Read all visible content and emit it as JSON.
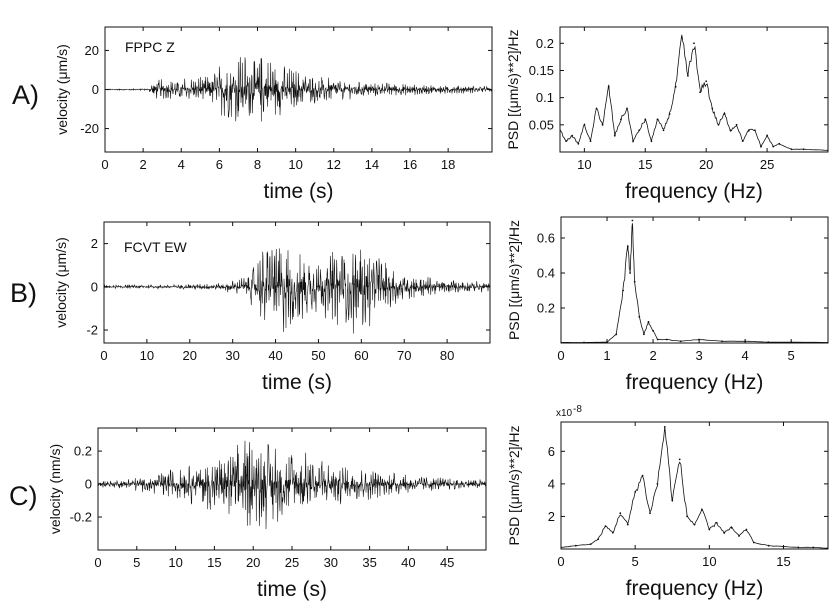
{
  "colors": {
    "ink": "#111111",
    "background": "#ffffff"
  },
  "chart_data": [
    {
      "type": "line",
      "panel": "A)",
      "label": "FPPC Z",
      "xlabel": "time (s)",
      "ylabel": "velocity (μm/s)",
      "xlim": [
        0,
        20.3
      ],
      "ylim": [
        -32,
        32
      ],
      "xticks": [
        0,
        2,
        4,
        6,
        8,
        10,
        12,
        14,
        16,
        18
      ],
      "yticks": [
        -20,
        0,
        20
      ],
      "envelope": {
        "x": [
          0,
          2.3,
          2.5,
          4,
          5.5,
          6.5,
          7.3,
          8,
          9,
          10.5,
          12,
          14,
          16,
          18,
          20.3
        ],
        "amp": [
          0.3,
          0.5,
          5,
          6,
          8,
          17,
          19,
          21,
          14,
          9,
          6,
          4,
          3,
          2.5,
          2
        ]
      },
      "grid": false
    },
    {
      "type": "line",
      "panel": "A)",
      "xlabel": "frequency (Hz)",
      "ylabel": "PSD [(μm/s)**2]/Hz",
      "xlim": [
        8,
        30
      ],
      "ylim": [
        0,
        0.23
      ],
      "xticks": [
        10,
        15,
        20,
        25
      ],
      "yticks": [
        0.05,
        0.1,
        0.15,
        0.2
      ],
      "x": [
        8,
        8.5,
        9,
        9.5,
        10,
        10.5,
        11,
        11.5,
        12,
        12.5,
        13,
        13.5,
        14,
        14.5,
        15,
        15.5,
        16,
        16.5,
        17,
        17.5,
        18,
        18.5,
        19,
        19.5,
        20,
        20.5,
        21,
        21.5,
        22,
        22.5,
        23,
        23.5,
        24,
        24.5,
        25,
        25.5,
        26,
        27,
        28,
        30
      ],
      "y": [
        0.04,
        0.02,
        0.03,
        0.015,
        0.05,
        0.02,
        0.08,
        0.05,
        0.12,
        0.03,
        0.06,
        0.08,
        0.02,
        0.04,
        0.06,
        0.02,
        0.06,
        0.04,
        0.07,
        0.12,
        0.21,
        0.14,
        0.2,
        0.11,
        0.13,
        0.08,
        0.05,
        0.07,
        0.04,
        0.05,
        0.02,
        0.04,
        0.04,
        0.01,
        0.03,
        0.01,
        0.015,
        0.005,
        0.005,
        0.003
      ],
      "grid": false
    },
    {
      "type": "line",
      "panel": "B)",
      "label": "FCVT EW",
      "xlabel": "time (s)",
      "ylabel": "velocity (μm/s)",
      "xlim": [
        0,
        90
      ],
      "ylim": [
        -2.6,
        3
      ],
      "xticks": [
        0,
        10,
        20,
        30,
        40,
        50,
        60,
        70,
        80
      ],
      "yticks": [
        -2,
        0,
        2
      ],
      "envelope": {
        "x": [
          0,
          10,
          20,
          28,
          33,
          38,
          42,
          46,
          50,
          54,
          58,
          62,
          66,
          72,
          80,
          90
        ],
        "amp": [
          0.08,
          0.1,
          0.12,
          0.2,
          0.5,
          2.3,
          2.2,
          2.0,
          1.2,
          1.9,
          2.4,
          1.9,
          1.2,
          0.6,
          0.35,
          0.25
        ]
      },
      "grid": false
    },
    {
      "type": "line",
      "panel": "B)",
      "xlabel": "frequency (Hz)",
      "ylabel": "PSD [(μm/s)**2]/Hz",
      "xlim": [
        0,
        5.8
      ],
      "ylim": [
        0,
        0.72
      ],
      "xticks": [
        0,
        1,
        2,
        3,
        4,
        5
      ],
      "yticks": [
        0.2,
        0.4,
        0.6
      ],
      "x": [
        0,
        0.5,
        1.0,
        1.2,
        1.35,
        1.45,
        1.5,
        1.55,
        1.6,
        1.7,
        1.8,
        1.9,
        2.0,
        2.1,
        2.3,
        2.6,
        3.0,
        3.5,
        4.0,
        4.5,
        5.0,
        5.8
      ],
      "y": [
        0.003,
        0.003,
        0.005,
        0.05,
        0.3,
        0.55,
        0.4,
        0.7,
        0.35,
        0.15,
        0.05,
        0.12,
        0.07,
        0.02,
        0.02,
        0.01,
        0.02,
        0.01,
        0.01,
        0.005,
        0.005,
        0.003
      ],
      "grid": false
    },
    {
      "type": "line",
      "panel": "C)",
      "xlabel": "time (s)",
      "ylabel": "velocity (nm/s)",
      "xlim": [
        0,
        50
      ],
      "ylim": [
        -0.4,
        0.34
      ],
      "xticks": [
        0,
        5,
        10,
        15,
        20,
        25,
        30,
        35,
        40,
        45
      ],
      "yticks": [
        -0.2,
        0,
        0.2
      ],
      "envelope": {
        "x": [
          0,
          3,
          7,
          10,
          13,
          16,
          18,
          20,
          22,
          25,
          28,
          32,
          36,
          40,
          45,
          50
        ],
        "amp": [
          0.02,
          0.03,
          0.06,
          0.1,
          0.14,
          0.2,
          0.28,
          0.3,
          0.28,
          0.22,
          0.18,
          0.12,
          0.09,
          0.06,
          0.04,
          0.03
        ]
      },
      "grid": false
    },
    {
      "type": "line",
      "panel": "C)",
      "xlabel": "frequency (Hz)",
      "ylabel": "PSD [(μm/s)**2]/Hz",
      "ylabel_multiplier": "x10",
      "ylabel_exponent": "-8",
      "xlim": [
        0,
        18
      ],
      "ylim": [
        0,
        7.8
      ],
      "xticks": [
        0,
        5,
        10,
        15
      ],
      "yticks": [
        2,
        4,
        6
      ],
      "x": [
        0,
        1,
        2,
        2.5,
        3,
        3.5,
        4,
        4.5,
        5,
        5.5,
        6,
        6.5,
        7,
        7.5,
        8,
        8.5,
        9,
        9.5,
        10,
        10.5,
        11,
        11.5,
        12,
        12.5,
        13,
        14,
        15,
        16,
        17,
        18
      ],
      "y": [
        0.1,
        0.2,
        0.3,
        0.6,
        1.4,
        1.0,
        2.2,
        1.5,
        3.5,
        4.5,
        2.2,
        4.0,
        7.5,
        3.0,
        5.5,
        2.0,
        1.5,
        2.4,
        1.2,
        1.6,
        1.0,
        1.3,
        0.8,
        1.2,
        0.4,
        0.2,
        0.15,
        0.1,
        0.1,
        0.05
      ],
      "grid": false
    }
  ]
}
